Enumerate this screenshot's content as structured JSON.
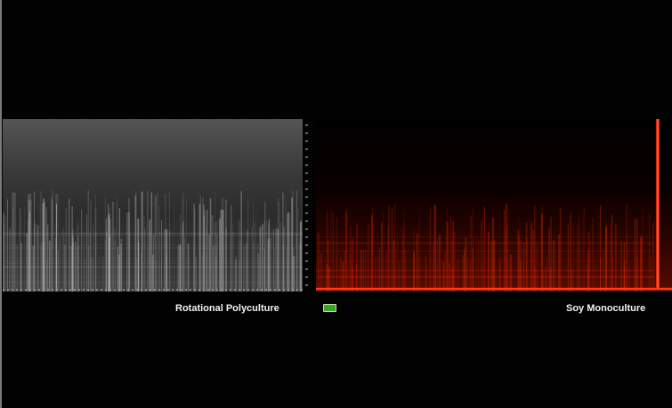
{
  "left_spectrogram": {
    "label": "Rotational Polyculture",
    "color": "#d8d8d8"
  },
  "right_spectrogram": {
    "label": "Soy Monoculture",
    "color": "#ff2a10"
  },
  "indicator": {
    "icon": "green-rectangle",
    "color": "#3ca22a"
  }
}
